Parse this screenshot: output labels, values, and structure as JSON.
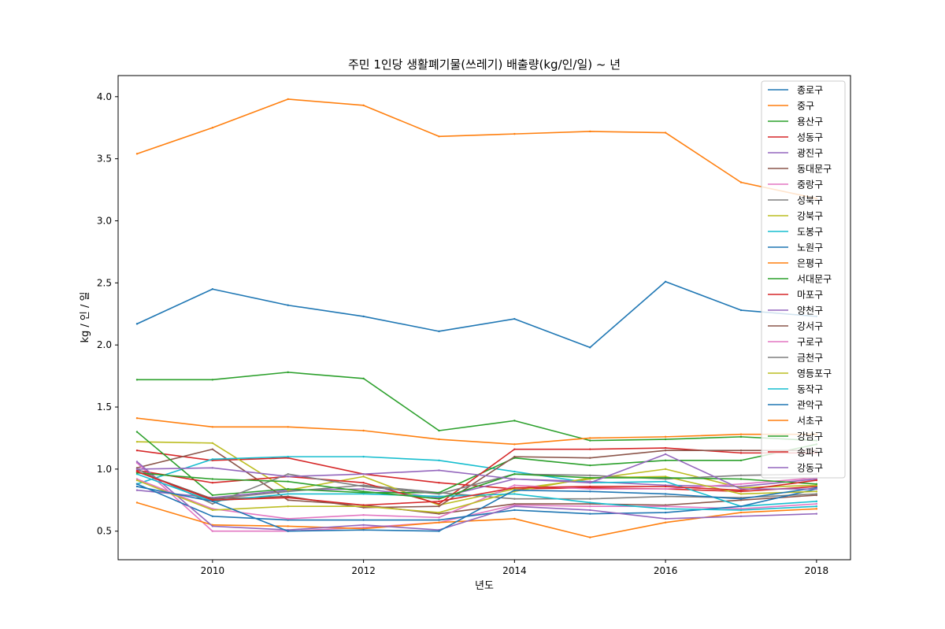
{
  "chart_data": {
    "type": "line",
    "title": "주민 1인당 생활폐기물(쓰레기) 배출량(kg/인/일) ~ 년",
    "xlabel": "년도",
    "ylabel": "kg / 인 / 일",
    "xlim": [
      2008.75,
      2018.45
    ],
    "ylim": [
      0.27,
      4.17
    ],
    "x_ticks": [
      "2010",
      "2012",
      "2014",
      "2016",
      "2018"
    ],
    "y_ticks": [
      "0.5",
      "1.0",
      "1.5",
      "2.0",
      "2.5",
      "3.0",
      "3.5",
      "4.0"
    ],
    "legend_position": "top-right",
    "grid": false,
    "x": [
      2009,
      2010,
      2011,
      2012,
      2013,
      2014,
      2015,
      2016,
      2017,
      2018
    ],
    "series": [
      {
        "name": "종로구",
        "color": "#1f77b4",
        "values": [
          2.17,
          2.45,
          2.32,
          2.23,
          2.11,
          2.21,
          1.98,
          2.51,
          2.28,
          2.23
        ]
      },
      {
        "name": "중구",
        "color": "#ff7f0e",
        "values": [
          3.54,
          3.75,
          3.98,
          3.93,
          3.68,
          3.7,
          3.72,
          3.71,
          3.31,
          3.18
        ]
      },
      {
        "name": "용산구",
        "color": "#2ca02c",
        "values": [
          1.72,
          1.72,
          1.78,
          1.73,
          1.31,
          1.39,
          1.23,
          1.24,
          1.26,
          1.23
        ]
      },
      {
        "name": "성동구",
        "color": "#d62728",
        "values": [
          1.15,
          1.07,
          1.09,
          0.96,
          0.89,
          0.84,
          0.85,
          0.84,
          0.82,
          0.86
        ]
      },
      {
        "name": "광진구",
        "color": "#9467bd",
        "values": [
          0.83,
          0.77,
          0.83,
          0.84,
          0.77,
          0.92,
          0.9,
          0.87,
          0.86,
          0.92
        ]
      },
      {
        "name": "동대문구",
        "color": "#8c564b",
        "values": [
          1.01,
          1.16,
          0.75,
          0.71,
          0.64,
          0.72,
          0.72,
          0.71,
          0.75,
          0.79
        ]
      },
      {
        "name": "중랑구",
        "color": "#e377c2",
        "values": [
          1.05,
          0.5,
          0.5,
          0.53,
          0.57,
          0.71,
          0.7,
          0.7,
          0.68,
          0.72
        ]
      },
      {
        "name": "성북구",
        "color": "#7f7f7f",
        "values": [
          0.98,
          0.76,
          0.82,
          0.87,
          0.81,
          0.76,
          0.76,
          0.78,
          0.77,
          0.8
        ]
      },
      {
        "name": "강북구",
        "color": "#bcbd22",
        "values": [
          1.22,
          1.21,
          0.83,
          0.94,
          0.71,
          0.84,
          0.92,
          1.0,
          0.85,
          0.87
        ]
      },
      {
        "name": "도봉구",
        "color": "#17becf",
        "values": [
          0.88,
          1.08,
          1.1,
          1.1,
          1.07,
          0.98,
          0.89,
          0.9,
          0.7,
          0.74
        ]
      },
      {
        "name": "노원구",
        "color": "#1f77b4",
        "values": [
          0.88,
          0.62,
          0.59,
          0.59,
          0.59,
          0.67,
          0.64,
          0.65,
          0.7,
          0.84
        ]
      },
      {
        "name": "은평구",
        "color": "#ff7f0e",
        "values": [
          0.73,
          0.55,
          0.54,
          0.52,
          0.57,
          0.6,
          0.45,
          0.57,
          0.65,
          0.68
        ]
      },
      {
        "name": "서대문구",
        "color": "#2ca02c",
        "values": [
          1.3,
          0.79,
          0.84,
          0.81,
          0.81,
          1.09,
          1.03,
          1.07,
          1.07,
          1.2
        ]
      },
      {
        "name": "마포구",
        "color": "#d62728",
        "values": [
          0.99,
          0.89,
          0.94,
          0.89,
          0.72,
          1.16,
          1.16,
          1.17,
          1.13,
          1.13
        ]
      },
      {
        "name": "양천구",
        "color": "#9467bd",
        "values": [
          1.06,
          0.54,
          0.51,
          0.55,
          0.51,
          0.7,
          0.67,
          0.6,
          0.62,
          0.64
        ]
      },
      {
        "name": "강서구",
        "color": "#8c564b",
        "values": [
          0.98,
          0.76,
          0.78,
          0.69,
          0.7,
          1.1,
          1.09,
          1.15,
          1.15,
          1.15
        ]
      },
      {
        "name": "구로구",
        "color": "#e377c2",
        "values": [
          0.92,
          0.68,
          0.6,
          0.63,
          0.61,
          0.87,
          0.84,
          0.84,
          0.88,
          0.93
        ]
      },
      {
        "name": "금천구",
        "color": "#7f7f7f",
        "values": [
          1.0,
          0.72,
          0.96,
          0.86,
          0.8,
          0.96,
          0.95,
          0.92,
          0.95,
          0.96
        ]
      },
      {
        "name": "영등포구",
        "color": "#bcbd22",
        "values": [
          0.91,
          0.67,
          0.7,
          0.7,
          0.65,
          0.82,
          0.93,
          0.94,
          0.8,
          0.82
        ]
      },
      {
        "name": "동작구",
        "color": "#17becf",
        "values": [
          0.96,
          0.74,
          0.8,
          0.8,
          0.78,
          0.8,
          0.73,
          0.68,
          0.67,
          0.7
        ]
      },
      {
        "name": "관악구",
        "color": "#1f77b4",
        "values": [
          0.86,
          0.74,
          0.5,
          0.51,
          0.5,
          0.83,
          0.82,
          0.8,
          0.76,
          0.85
        ]
      },
      {
        "name": "서초구",
        "color": "#ff7f0e",
        "values": [
          1.41,
          1.34,
          1.34,
          1.31,
          1.24,
          1.2,
          1.25,
          1.26,
          1.28,
          1.28
        ]
      },
      {
        "name": "강남구",
        "color": "#2ca02c",
        "values": [
          0.97,
          0.92,
          0.9,
          0.82,
          0.76,
          0.96,
          0.93,
          0.93,
          0.92,
          0.88
        ]
      },
      {
        "name": "송파구",
        "color": "#d62728",
        "values": [
          0.98,
          0.75,
          0.77,
          0.71,
          0.74,
          0.85,
          0.86,
          0.86,
          0.83,
          0.91
        ]
      },
      {
        "name": "강동구",
        "color": "#9467bd",
        "values": [
          1.0,
          1.01,
          0.94,
          0.96,
          0.99,
          0.92,
          0.89,
          1.12,
          0.84,
          0.84
        ]
      }
    ]
  }
}
